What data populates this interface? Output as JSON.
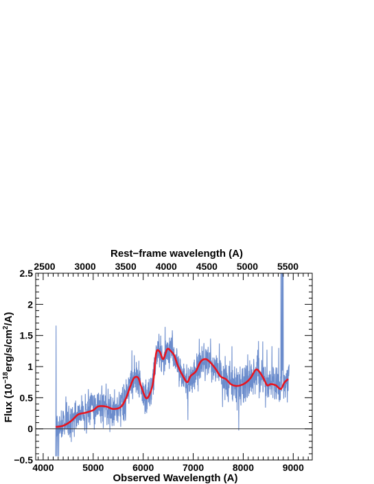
{
  "chart_data": {
    "type": "line",
    "title": "",
    "xlabel": "Observed Wavelength (A)",
    "ylabel_parts": {
      "prefix": "Flux (10",
      "exp1": "−18",
      "mid": "erg/s/cm",
      "exp2": "2",
      "suffix": "/A)"
    },
    "x2label": "Rest−frame wavelength (A)",
    "xlim": [
      3850,
      9380
    ],
    "ylim": [
      -0.5,
      2.5
    ],
    "x2lim": [
      2390,
      5800
    ],
    "x_ticks": [
      4000,
      5000,
      6000,
      7000,
      8000,
      9000
    ],
    "y_ticks": [
      -0.5,
      0,
      0.5,
      1,
      1.5,
      2,
      2.5
    ],
    "y_tick_labels": [
      "−0.5",
      "0",
      "0.5",
      "1",
      "1.5",
      "2",
      "2.5"
    ],
    "x2_ticks": [
      2500,
      3000,
      3500,
      4000,
      4500,
      5000,
      5500
    ],
    "grid": false,
    "colors": {
      "spectrum": "#5b80c6",
      "model": "#e8141e",
      "zero_line": "#333333"
    },
    "series": [
      {
        "x": [
          4250,
          4400,
          4550,
          4700,
          4850,
          5000,
          5100,
          5250,
          5400,
          5550,
          5650,
          5750,
          5820,
          5900,
          5960,
          6050,
          6120,
          6200,
          6260,
          6330,
          6400,
          6480,
          6550,
          6620,
          6700,
          6800,
          6880,
          6950,
          7050,
          7150,
          7250,
          7350,
          7450,
          7550,
          7650,
          7750,
          7850,
          7950,
          8050,
          8150,
          8250,
          8320,
          8400,
          8480,
          8550,
          8650,
          8750,
          8820,
          8900
        ],
        "values": [
          0.03,
          0.05,
          0.12,
          0.23,
          0.26,
          0.3,
          0.36,
          0.36,
          0.32,
          0.35,
          0.48,
          0.7,
          0.82,
          0.82,
          0.68,
          0.5,
          0.54,
          0.76,
          1.22,
          1.24,
          1.12,
          1.28,
          1.25,
          1.18,
          1.0,
          0.84,
          0.75,
          0.85,
          0.92,
          1.08,
          1.12,
          1.06,
          0.96,
          0.84,
          0.8,
          0.72,
          0.69,
          0.7,
          0.74,
          0.82,
          0.95,
          0.92,
          0.82,
          0.7,
          0.72,
          0.7,
          0.64,
          0.74,
          0.8
        ]
      }
    ]
  }
}
